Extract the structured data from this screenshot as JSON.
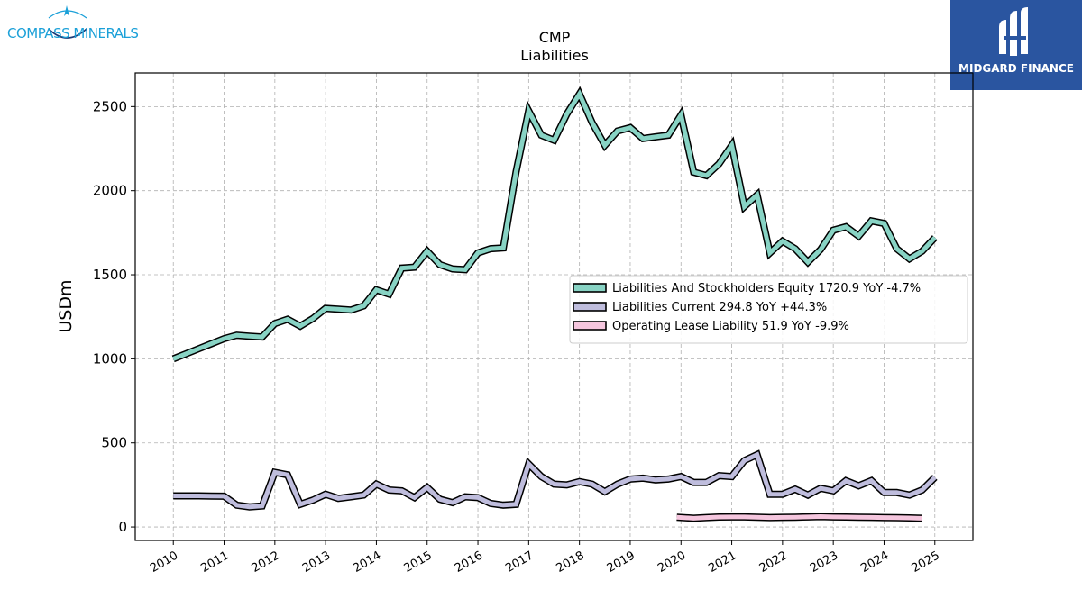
{
  "branding": {
    "company_logo_text": "COMPASS MINERALS",
    "partner_logo_text": "MIDGARD FINANCE",
    "company_color": "#1ba0d8",
    "partner_color": "#2a55a0"
  },
  "chart_data": {
    "type": "line",
    "title": "CMP",
    "subtitle": "Liabilities",
    "xlabel": "",
    "ylabel": "USDm",
    "x_ticks": [
      "2010",
      "2011",
      "2012",
      "2013",
      "2014",
      "2015",
      "2016",
      "2017",
      "2018",
      "2019",
      "2020",
      "2021",
      "2022",
      "2023",
      "2024",
      "2025"
    ],
    "y_ticks": [
      0,
      500,
      1000,
      1500,
      2000,
      2500
    ],
    "xlim": [
      "2009-04",
      "2025-10"
    ],
    "ylim": [
      -80,
      2700
    ],
    "grid": true,
    "legend_position": "center-right",
    "series": [
      {
        "name": "Liabilities And Stockholders Equity",
        "legend_label": "Liabilities And Stockholders Equity  1720.9 YoY -4.7%",
        "color": "#88d3c4",
        "points": [
          [
            "2010-01",
            1000
          ],
          [
            "2010-04",
            1030
          ],
          [
            "2010-07",
            1060
          ],
          [
            "2010-10",
            1090
          ],
          [
            "2011-01",
            1120
          ],
          [
            "2011-04",
            1140
          ],
          [
            "2011-07",
            1135
          ],
          [
            "2011-10",
            1130
          ],
          [
            "2012-01",
            1210
          ],
          [
            "2012-04",
            1235
          ],
          [
            "2012-07",
            1195
          ],
          [
            "2012-10",
            1240
          ],
          [
            "2013-01",
            1300
          ],
          [
            "2013-04",
            1295
          ],
          [
            "2013-07",
            1290
          ],
          [
            "2013-10",
            1315
          ],
          [
            "2014-01",
            1410
          ],
          [
            "2014-04",
            1385
          ],
          [
            "2014-07",
            1540
          ],
          [
            "2014-10",
            1545
          ],
          [
            "2015-01",
            1640
          ],
          [
            "2015-04",
            1560
          ],
          [
            "2015-07",
            1535
          ],
          [
            "2015-10",
            1530
          ],
          [
            "2016-01",
            1630
          ],
          [
            "2016-04",
            1655
          ],
          [
            "2016-07",
            1660
          ],
          [
            "2016-10",
            2110
          ],
          [
            "2017-01",
            2475
          ],
          [
            "2017-04",
            2330
          ],
          [
            "2017-07",
            2300
          ],
          [
            "2017-10",
            2455
          ],
          [
            "2018-01",
            2575
          ],
          [
            "2018-04",
            2405
          ],
          [
            "2018-07",
            2270
          ],
          [
            "2018-10",
            2355
          ],
          [
            "2019-01",
            2375
          ],
          [
            "2019-04",
            2310
          ],
          [
            "2019-07",
            2320
          ],
          [
            "2019-10",
            2330
          ],
          [
            "2020-01",
            2450
          ],
          [
            "2020-04",
            2110
          ],
          [
            "2020-07",
            2090
          ],
          [
            "2020-10",
            2160
          ],
          [
            "2021-01",
            2270
          ],
          [
            "2021-04",
            1905
          ],
          [
            "2021-07",
            1975
          ],
          [
            "2021-10",
            1630
          ],
          [
            "2022-01",
            1700
          ],
          [
            "2022-04",
            1655
          ],
          [
            "2022-07",
            1575
          ],
          [
            "2022-10",
            1650
          ],
          [
            "2023-01",
            1765
          ],
          [
            "2023-04",
            1785
          ],
          [
            "2023-07",
            1730
          ],
          [
            "2023-10",
            1820
          ],
          [
            "2024-01",
            1805
          ],
          [
            "2024-04",
            1655
          ],
          [
            "2024-07",
            1595
          ],
          [
            "2024-10",
            1640
          ],
          [
            "2025-01",
            1721
          ]
        ]
      },
      {
        "name": "Liabilities Current",
        "legend_label": "Liabilities Current  294.8 YoY +44.3%",
        "color": "#bfbddd",
        "points": [
          [
            "2010-01",
            185
          ],
          [
            "2010-04",
            185
          ],
          [
            "2010-07",
            185
          ],
          [
            "2010-10",
            184
          ],
          [
            "2011-01",
            183
          ],
          [
            "2011-04",
            130
          ],
          [
            "2011-07",
            120
          ],
          [
            "2011-10",
            125
          ],
          [
            "2012-01",
            325
          ],
          [
            "2012-04",
            310
          ],
          [
            "2012-07",
            135
          ],
          [
            "2012-10",
            160
          ],
          [
            "2013-01",
            195
          ],
          [
            "2013-04",
            170
          ],
          [
            "2013-07",
            180
          ],
          [
            "2013-10",
            190
          ],
          [
            "2014-01",
            255
          ],
          [
            "2014-04",
            220
          ],
          [
            "2014-07",
            215
          ],
          [
            "2014-10",
            175
          ],
          [
            "2015-01",
            235
          ],
          [
            "2015-04",
            165
          ],
          [
            "2015-07",
            145
          ],
          [
            "2015-10",
            180
          ],
          [
            "2016-01",
            175
          ],
          [
            "2016-04",
            140
          ],
          [
            "2016-07",
            130
          ],
          [
            "2016-10",
            135
          ],
          [
            "2017-01",
            375
          ],
          [
            "2017-04",
            300
          ],
          [
            "2017-07",
            255
          ],
          [
            "2017-10",
            250
          ],
          [
            "2018-01",
            270
          ],
          [
            "2018-04",
            255
          ],
          [
            "2018-07",
            210
          ],
          [
            "2018-10",
            255
          ],
          [
            "2019-01",
            285
          ],
          [
            "2019-04",
            290
          ],
          [
            "2019-07",
            280
          ],
          [
            "2019-10",
            285
          ],
          [
            "2020-01",
            300
          ],
          [
            "2020-04",
            265
          ],
          [
            "2020-07",
            265
          ],
          [
            "2020-10",
            305
          ],
          [
            "2021-01",
            300
          ],
          [
            "2021-04",
            395
          ],
          [
            "2021-07",
            430
          ],
          [
            "2021-10",
            195
          ],
          [
            "2022-01",
            195
          ],
          [
            "2022-04",
            225
          ],
          [
            "2022-07",
            190
          ],
          [
            "2022-10",
            230
          ],
          [
            "2023-01",
            215
          ],
          [
            "2023-04",
            275
          ],
          [
            "2023-07",
            245
          ],
          [
            "2023-10",
            275
          ],
          [
            "2024-01",
            205
          ],
          [
            "2024-04",
            205
          ],
          [
            "2024-07",
            190
          ],
          [
            "2024-10",
            220
          ],
          [
            "2025-01",
            295
          ]
        ]
      },
      {
        "name": "Operating Lease Liability",
        "legend_label": "Operating Lease Liability  51.9 YoY -9.9%",
        "color": "#f5c6de",
        "points": [
          [
            "2019-12",
            58
          ],
          [
            "2020-04",
            52
          ],
          [
            "2020-07",
            56
          ],
          [
            "2020-10",
            59
          ],
          [
            "2021-01",
            60
          ],
          [
            "2021-04",
            60
          ],
          [
            "2021-07",
            58
          ],
          [
            "2021-10",
            56
          ],
          [
            "2022-01",
            57
          ],
          [
            "2022-04",
            58
          ],
          [
            "2022-07",
            60
          ],
          [
            "2022-10",
            62
          ],
          [
            "2023-01",
            60
          ],
          [
            "2023-04",
            59
          ],
          [
            "2023-07",
            58
          ],
          [
            "2023-10",
            57
          ],
          [
            "2024-01",
            56
          ],
          [
            "2024-04",
            55
          ],
          [
            "2024-07",
            54
          ],
          [
            "2024-10",
            52
          ]
        ]
      }
    ]
  }
}
